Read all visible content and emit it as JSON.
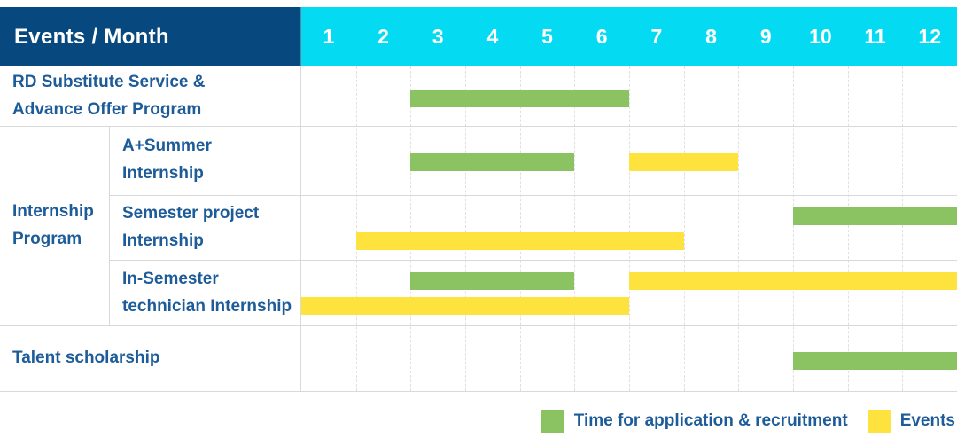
{
  "header": {
    "corner_label": "Events / Month",
    "months": [
      "1",
      "2",
      "3",
      "4",
      "5",
      "6",
      "7",
      "8",
      "9",
      "10",
      "11",
      "12"
    ]
  },
  "labels": {
    "rd": "RD Substitute Service &\nAdvance Offer Program",
    "internship_group": "Internship\nProgram",
    "a_summer": "A+Summer\nInternship",
    "semester_project": "Semester project\nInternship",
    "in_semester": "In-Semester\ntechnician Internship",
    "talent": "Talent scholarship"
  },
  "legend": [
    {
      "kind": "application",
      "label": "Time for application & recruitment"
    },
    {
      "kind": "event",
      "label": "Events"
    }
  ],
  "colors": {
    "navy": "#07497e",
    "cyan": "#04dbf2",
    "green": "#8bc363",
    "yellow": "#fee33e",
    "text-blue": "#1d5c99",
    "grid": "#d9d9d9"
  },
  "chart_data": {
    "type": "gantt",
    "x_unit": "month",
    "x_range": [
      1,
      12
    ],
    "legend": {
      "application": "Time for application & recruitment",
      "event": "Events"
    },
    "rows": [
      {
        "label": "RD Substitute Service & Advance Offer Program",
        "group": null,
        "segments": [
          {
            "kind": "application",
            "start_month": 3,
            "end_month": 6,
            "lane": "single"
          }
        ]
      },
      {
        "label": "A+Summer Internship",
        "group": "Internship Program",
        "segments": [
          {
            "kind": "application",
            "start_month": 3,
            "end_month": 5,
            "lane": "single"
          },
          {
            "kind": "event",
            "start_month": 7,
            "end_month": 8,
            "lane": "single"
          }
        ]
      },
      {
        "label": "Semester project Internship",
        "group": "Internship Program",
        "segments": [
          {
            "kind": "application",
            "start_month": 10,
            "end_month": 12,
            "lane": "top"
          },
          {
            "kind": "event",
            "start_month": 2,
            "end_month": 7,
            "lane": "bottom"
          }
        ]
      },
      {
        "label": "In-Semester technician Internship",
        "group": "Internship Program",
        "segments": [
          {
            "kind": "application",
            "start_month": 3,
            "end_month": 5,
            "lane": "top"
          },
          {
            "kind": "event",
            "start_month": 7,
            "end_month": 12,
            "lane": "top"
          },
          {
            "kind": "event",
            "start_month": 1,
            "end_month": 6,
            "lane": "bottom"
          }
        ]
      },
      {
        "label": "Talent scholarship",
        "group": null,
        "segments": [
          {
            "kind": "application",
            "start_month": 10,
            "end_month": 12,
            "lane": "single"
          }
        ]
      }
    ]
  }
}
